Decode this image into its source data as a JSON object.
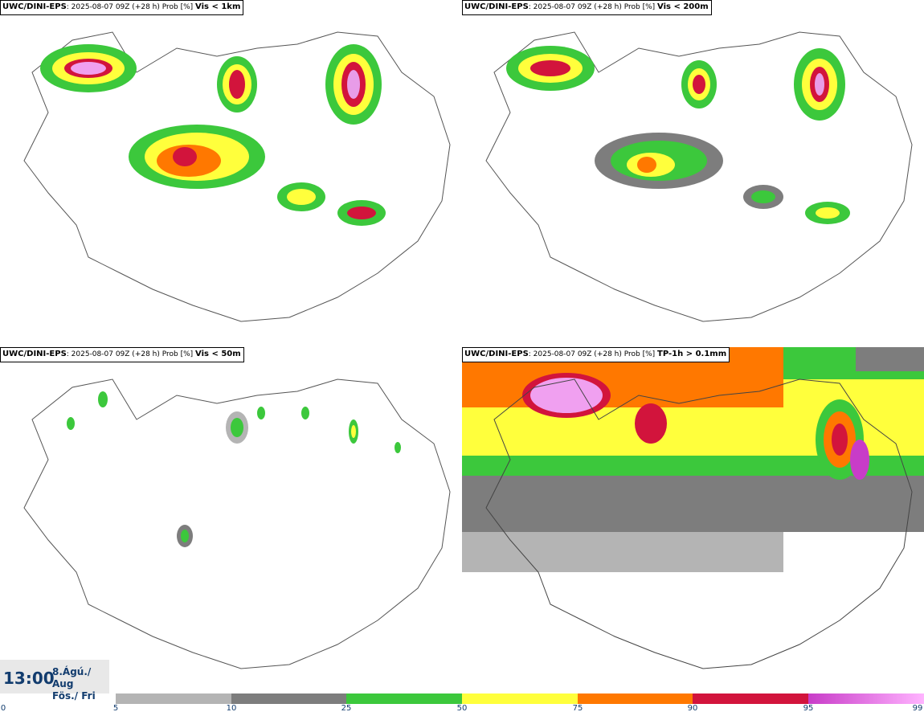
{
  "panels": [
    {
      "model": "UWC/DINI-EPS",
      "info": ": 2025-08-07 09Z (+28 h) Prob [%]",
      "variable": "Vis < 1km"
    },
    {
      "model": "UWC/DINI-EPS",
      "info": ": 2025-08-07 09Z (+28 h) Prob [%]",
      "variable": "Vis < 200m"
    },
    {
      "model": "UWC/DINI-EPS",
      "info": ": 2025-08-07 09Z (+28 h) Prob [%]",
      "variable": "Vis < 50m"
    },
    {
      "model": "UWC/DINI-EPS",
      "info": ": 2025-08-07 09Z (+28 h) Prob [%]",
      "variable": "TP-1h > 0.1mm"
    }
  ],
  "time": {
    "hour": "13:00",
    "date_line1": "8.Ágú./ Aug",
    "date_line2": "Fös./ Fri"
  },
  "legend": {
    "ticks": [
      "0",
      "5",
      "10",
      "25",
      "50",
      "75",
      "90",
      "95",
      "99"
    ],
    "bands": [
      {
        "from": "5",
        "to": "10",
        "color": "#b4b4b4"
      },
      {
        "from": "10",
        "to": "25",
        "color": "#7d7d7d"
      },
      {
        "from": "25",
        "to": "50",
        "color": "#3cc83c"
      },
      {
        "from": "50",
        "to": "75",
        "color": "#ffff3c"
      },
      {
        "from": "75",
        "to": "90",
        "color": "#ff7800"
      },
      {
        "from": "90",
        "to": "95",
        "color": "#d2143c"
      },
      {
        "from": "95",
        "to": "99",
        "color": "#c83cc8",
        "to_color": "#ffb4ff"
      }
    ]
  },
  "map_colors": {
    "coast": "#555555",
    "background": "#ffffff"
  }
}
